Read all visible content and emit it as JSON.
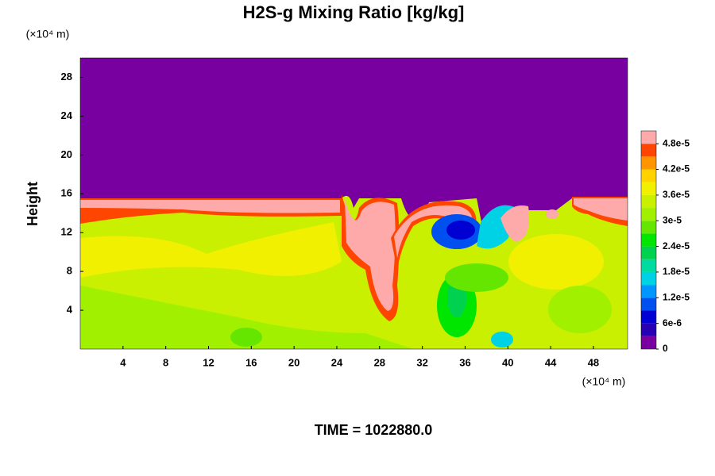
{
  "chart_data": {
    "type": "contour",
    "title": "H2S-g Mixing Ratio [kg/kg]",
    "y_label": "Height",
    "x_unit": "(×10⁴ m)",
    "y_unit": "(×10⁴ m)",
    "annotation": "TIME = 1022880.0",
    "xlim": [
      0,
      51.2
    ],
    "xticks": [
      4,
      8,
      12,
      16,
      20,
      24,
      28,
      32,
      36,
      40,
      44,
      48
    ],
    "ylim": [
      0,
      30
    ],
    "yticks": [
      4,
      8,
      12,
      16,
      20,
      24,
      28
    ],
    "levels": [
      0,
      3e-06,
      6e-06,
      9e-06,
      1.2e-05,
      1.5e-05,
      1.8e-05,
      2.1e-05,
      2.4e-05,
      2.7e-05,
      3e-05,
      3.3e-05,
      3.6e-05,
      3.9e-05,
      4.2e-05,
      4.5e-05,
      4.8e-05,
      5.1e-05
    ],
    "colors": [
      "#7800a0",
      "#2800b4",
      "#0000d2",
      "#0050f0",
      "#0096ff",
      "#00d2e6",
      "#00dca0",
      "#00d250",
      "#00e600",
      "#64e600",
      "#a0f000",
      "#c8f000",
      "#f0f000",
      "#ffd200",
      "#ff9600",
      "#ff4600",
      "#ffaaaa"
    ],
    "cticks": [
      0,
      {
        "value": 6e-06,
        "label": "6e-6"
      },
      {
        "value": 1.2e-05,
        "label": "1.2e-5"
      },
      {
        "value": 1.8e-05,
        "label": "1.8e-5"
      },
      {
        "value": 2.4e-05,
        "label": "2.4e-5"
      },
      {
        "value": 3e-05,
        "label": "3e-5"
      },
      {
        "value": 3.6e-05,
        "label": "3.6e-5"
      },
      {
        "value": 4.2e-05,
        "label": "4.2e-5"
      },
      {
        "value": 4.8e-05,
        "label": "4.8e-5"
      }
    ]
  }
}
